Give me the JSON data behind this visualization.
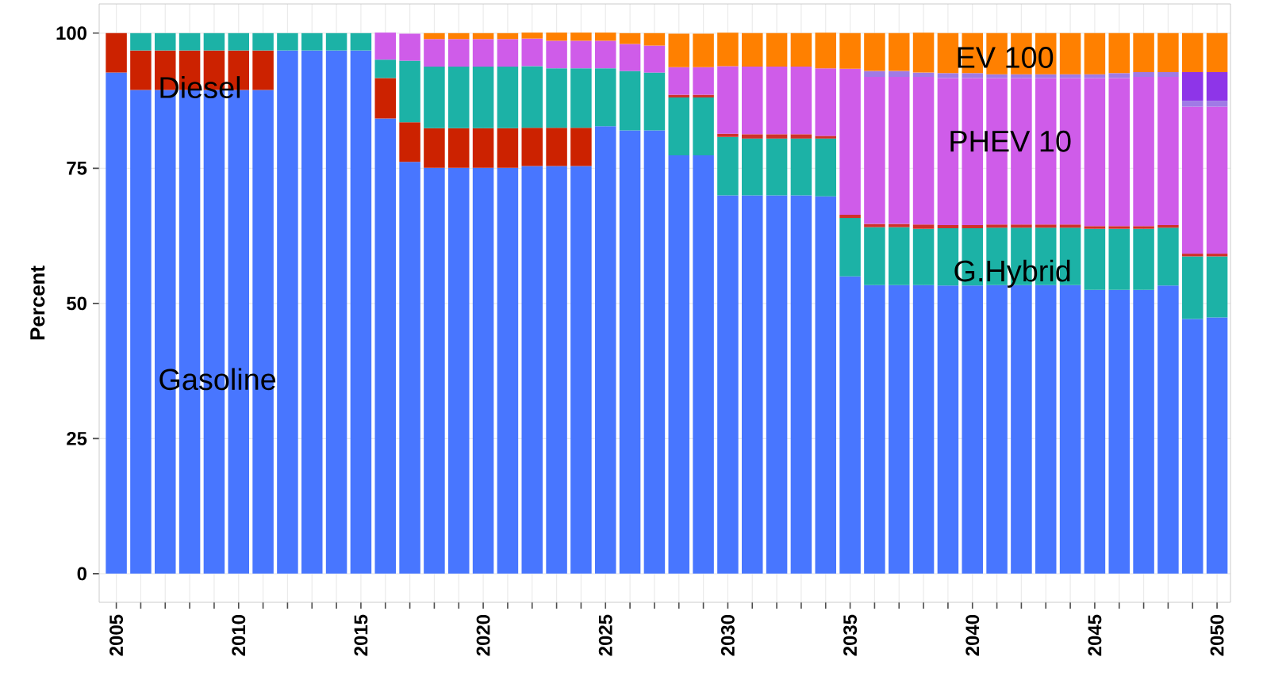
{
  "chart_data": {
    "type": "bar",
    "stacked": true,
    "grid": true,
    "ylabel": "Percent",
    "x": [
      2005,
      2006,
      2007,
      2008,
      2009,
      2010,
      2011,
      2012,
      2013,
      2014,
      2015,
      2016,
      2017,
      2018,
      2019,
      2020,
      2021,
      2022,
      2023,
      2024,
      2025,
      2026,
      2027,
      2028,
      2029,
      2030,
      2031,
      2032,
      2033,
      2034,
      2035,
      2036,
      2037,
      2038,
      2039,
      2040,
      2041,
      2042,
      2043,
      2044,
      2045,
      2046,
      2047,
      2048,
      2049,
      2050
    ],
    "xlim": [
      2004.3,
      2050.55
    ],
    "xticks": [
      2005,
      {
        "value": 2006,
        "label": null
      },
      {
        "value": 2007,
        "label": null
      },
      {
        "value": 2008,
        "label": null
      },
      {
        "value": 2009,
        "label": null
      },
      2010,
      {
        "value": 2011,
        "label": null
      },
      {
        "value": 2012,
        "label": null
      },
      {
        "value": 2013,
        "label": null
      },
      {
        "value": 2014,
        "label": null
      },
      2015,
      {
        "value": 2016,
        "label": null
      },
      {
        "value": 2017,
        "label": null
      },
      {
        "value": 2018,
        "label": null
      },
      {
        "value": 2019,
        "label": null
      },
      2020,
      {
        "value": 2021,
        "label": null
      },
      {
        "value": 2022,
        "label": null
      },
      {
        "value": 2023,
        "label": null
      },
      {
        "value": 2024,
        "label": null
      },
      2025,
      {
        "value": 2026,
        "label": null
      },
      {
        "value": 2027,
        "label": null
      },
      {
        "value": 2028,
        "label": null
      },
      {
        "value": 2029,
        "label": null
      },
      2030,
      {
        "value": 2031,
        "label": null
      },
      {
        "value": 2032,
        "label": null
      },
      {
        "value": 2033,
        "label": null
      },
      {
        "value": 2034,
        "label": null
      },
      2035,
      {
        "value": 2036,
        "label": null
      },
      {
        "value": 2037,
        "label": null
      },
      {
        "value": 2038,
        "label": null
      },
      {
        "value": 2039,
        "label": null
      },
      2040,
      {
        "value": 2041,
        "label": null
      },
      {
        "value": 2042,
        "label": null
      },
      {
        "value": 2043,
        "label": null
      },
      {
        "value": 2044,
        "label": null
      },
      2045,
      {
        "value": 2046,
        "label": null
      },
      {
        "value": 2047,
        "label": null
      },
      {
        "value": 2048,
        "label": null
      },
      {
        "value": 2049,
        "label": null
      },
      2050
    ],
    "ylim": [
      -5.3,
      105.4
    ],
    "yticks": [
      0,
      25,
      50,
      75,
      100
    ],
    "series": [
      {
        "name": "Gasoline",
        "color": "#4876ff",
        "values": [
          92.7,
          89.5,
          89.5,
          89.5,
          89.5,
          89.5,
          89.5,
          96.8,
          96.8,
          96.8,
          96.8,
          84.2,
          76.2,
          75.1,
          75.1,
          75.1,
          75.1,
          75.4,
          75.4,
          75.4,
          82.8,
          82.0,
          82.0,
          77.4,
          77.4,
          70.0,
          70.0,
          70.0,
          70.0,
          69.8,
          55.0,
          53.4,
          53.4,
          53.4,
          53.3,
          53.3,
          53.4,
          53.4,
          53.4,
          53.4,
          52.5,
          52.5,
          52.5,
          53.3,
          47.1,
          47.4
        ]
      },
      {
        "name": "Diesel",
        "color": "#cc2200",
        "values": [
          7.3,
          7.3,
          7.3,
          7.3,
          7.3,
          7.3,
          7.3,
          null,
          null,
          null,
          null,
          7.5,
          7.3,
          7.3,
          7.3,
          7.3,
          7.3,
          7.1,
          7.1,
          7.1,
          null,
          null,
          null,
          null,
          null,
          null,
          null,
          null,
          null,
          null,
          null,
          null,
          null,
          null,
          null,
          null,
          null,
          null,
          null,
          null,
          null,
          null,
          null,
          null,
          null,
          null
        ]
      },
      {
        "name": "G.Hybrid",
        "color": "#1cb2a6",
        "values": [
          null,
          3.2,
          3.2,
          3.2,
          3.2,
          3.2,
          3.2,
          3.2,
          3.2,
          3.2,
          3.2,
          3.4,
          11.4,
          11.4,
          11.4,
          11.4,
          11.4,
          11.4,
          11.0,
          11.0,
          10.7,
          11.0,
          10.7,
          10.7,
          10.7,
          10.8,
          10.5,
          10.5,
          10.5,
          10.7,
          10.8,
          10.7,
          10.7,
          10.4,
          10.6,
          10.6,
          10.6,
          10.6,
          10.6,
          10.6,
          11.3,
          11.3,
          11.3,
          10.7,
          11.6,
          11.3
        ]
      },
      {
        "color": "#d0302a",
        "values": [
          null,
          null,
          null,
          null,
          null,
          null,
          null,
          null,
          null,
          null,
          null,
          null,
          null,
          null,
          null,
          null,
          null,
          null,
          null,
          null,
          null,
          null,
          null,
          0.5,
          0.5,
          0.6,
          0.8,
          0.8,
          0.8,
          0.5,
          0.6,
          0.6,
          0.6,
          0.8,
          0.6,
          0.6,
          0.6,
          0.6,
          0.6,
          0.6,
          0.5,
          0.5,
          0.5,
          0.5,
          0.5,
          0.5
        ]
      },
      {
        "name": "PHEV 10",
        "color": "#cf5ce9",
        "values": [
          null,
          null,
          null,
          null,
          null,
          null,
          null,
          null,
          null,
          null,
          null,
          5.0,
          5.0,
          5.1,
          5.1,
          5.1,
          5.1,
          5.1,
          5.1,
          5.1,
          5.1,
          5.0,
          5.0,
          5.1,
          5.1,
          12.5,
          12.5,
          12.5,
          12.5,
          12.5,
          27.0,
          27.2,
          27.2,
          27.3,
          27.2,
          27.2,
          27.1,
          27.1,
          27.1,
          27.1,
          27.4,
          27.4,
          27.6,
          27.4,
          27.2,
          27.2
        ]
      },
      {
        "color": "#a07ae6",
        "values": [
          null,
          null,
          null,
          null,
          null,
          null,
          null,
          null,
          null,
          null,
          null,
          null,
          null,
          null,
          null,
          null,
          null,
          null,
          null,
          null,
          null,
          null,
          null,
          null,
          null,
          null,
          null,
          null,
          null,
          null,
          null,
          1.1,
          1.1,
          0.8,
          0.9,
          0.9,
          0.7,
          0.7,
          0.7,
          0.7,
          0.7,
          0.9,
          0.9,
          0.9,
          1.1,
          1.1
        ]
      },
      {
        "color": "#8e35e8",
        "values": [
          null,
          null,
          null,
          null,
          null,
          null,
          null,
          null,
          null,
          null,
          null,
          null,
          null,
          null,
          null,
          null,
          null,
          null,
          null,
          null,
          null,
          null,
          null,
          null,
          null,
          null,
          null,
          null,
          null,
          null,
          null,
          null,
          null,
          null,
          null,
          null,
          null,
          null,
          null,
          null,
          null,
          null,
          null,
          null,
          5.3,
          5.3
        ]
      },
      {
        "name": "EV 100",
        "color": "#ff8000",
        "values": [
          null,
          null,
          null,
          null,
          null,
          null,
          null,
          null,
          null,
          null,
          null,
          null,
          null,
          1.1,
          1.1,
          1.1,
          1.1,
          1.1,
          1.5,
          1.5,
          1.5,
          2.0,
          2.3,
          6.2,
          6.2,
          6.2,
          6.2,
          6.2,
          6.2,
          6.6,
          6.6,
          7.0,
          7.0,
          7.4,
          7.4,
          7.4,
          7.6,
          7.6,
          7.6,
          7.6,
          7.6,
          7.4,
          7.2,
          7.2,
          7.2,
          7.2
        ]
      }
    ]
  }
}
